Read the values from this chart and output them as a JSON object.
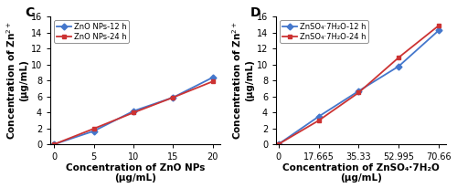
{
  "panel_C": {
    "label": "C",
    "x": [
      0,
      5,
      10,
      15,
      20
    ],
    "y_12h": [
      0.05,
      1.7,
      4.2,
      5.9,
      8.4
    ],
    "y_24h": [
      0.05,
      2.0,
      4.0,
      5.9,
      7.9
    ],
    "color_12h": "#4477CC",
    "color_24h": "#CC3333",
    "legend_12h": "ZnO NPs-12 h",
    "legend_24h": "ZnO NPs-24 h",
    "xlabel_line1": "Concentration of ZnO NPs",
    "xlabel_line2": "(μg/mL)",
    "xticks": [
      0,
      5,
      10,
      15,
      20
    ],
    "xtick_labels": [
      "0",
      "5",
      "10",
      "15",
      "20"
    ],
    "xlim": [
      -0.5,
      21
    ],
    "ylim": [
      0,
      16
    ],
    "yticks": [
      0,
      2,
      4,
      6,
      8,
      10,
      12,
      14,
      16
    ]
  },
  "panel_D": {
    "label": "D",
    "x": [
      0,
      17.665,
      35.33,
      52.995,
      70.66
    ],
    "y_12h": [
      0.05,
      3.5,
      6.7,
      9.8,
      14.3
    ],
    "y_24h": [
      0.05,
      3.0,
      6.5,
      10.9,
      14.9
    ],
    "color_12h": "#4477CC",
    "color_24h": "#CC3333",
    "legend_12h": "ZnSO₄·7H₂O-12 h",
    "legend_24h": "ZnSO₄·7H₂O-24 h",
    "xlabel_line1": "Concentration of ZnSO₄·7H₂O",
    "xlabel_line2": "(μg/mL)",
    "xticks": [
      0,
      17.665,
      35.33,
      52.995,
      70.66
    ],
    "xtick_labels": [
      "0",
      "17.665",
      "35.33",
      "52.995",
      "70.66"
    ],
    "xlim": [
      -1,
      74
    ],
    "ylim": [
      0,
      16
    ],
    "yticks": [
      0,
      2,
      4,
      6,
      8,
      10,
      12,
      14,
      16
    ]
  },
  "ylabel_text": "Concentration of Zn$^{2+}$\n(μg/mL)",
  "marker_12h": "D",
  "marker_24h": "s",
  "markersize": 3.5,
  "linewidth": 1.3,
  "tick_labelsize": 7,
  "xlabel_fontsize": 7.5,
  "ylabel_fontsize": 7.5,
  "legend_fontsize": 6,
  "label_fontsize": 10
}
